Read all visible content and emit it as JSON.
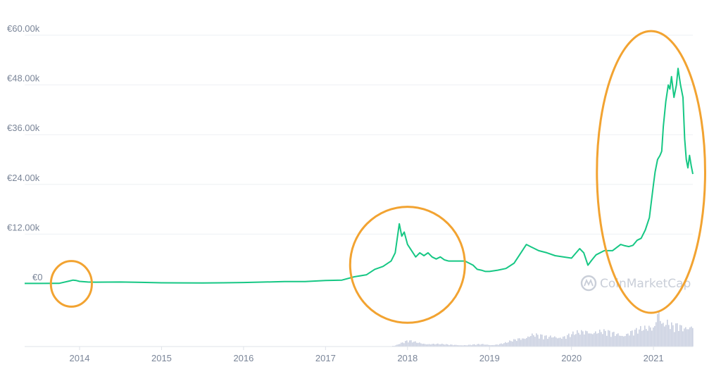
{
  "watermark": "CoinMarketCap",
  "chart_data": {
    "type": "line",
    "title": "",
    "xlabel": "",
    "ylabel": "",
    "y_tick_labels": [
      "€0",
      "€12.00k",
      "€24.00k",
      "€36.00k",
      "€48.00k",
      "€60.00k"
    ],
    "y_tick_values": [
      0,
      12000,
      24000,
      36000,
      48000,
      60000
    ],
    "ylim": [
      0,
      60000
    ],
    "x_tick_labels": [
      "2014",
      "2015",
      "2016",
      "2017",
      "2018",
      "2019",
      "2020",
      "2021"
    ],
    "x_tick_values": [
      2014.0,
      2015.0,
      2016.0,
      2017.0,
      2018.0,
      2019.0,
      2020.0,
      2021.0
    ],
    "xlim": [
      2013.33,
      2021.48
    ],
    "grid": true,
    "line_color": "#16c784",
    "volume_color": "#c9cfe0",
    "annotation_color": "#f2a331",
    "annotations": [
      {
        "shape": "circle",
        "x": 2013.9,
        "y": 0,
        "rx_years": 0.25,
        "ry_value": 5500
      },
      {
        "shape": "circle",
        "x": 2018.0,
        "y": 4600,
        "rx_years": 0.7,
        "ry_value": 14000
      },
      {
        "shape": "ellipse",
        "x": 2020.97,
        "y": 27000,
        "rx_years": 0.66,
        "ry_value": 34000
      }
    ],
    "series": [
      {
        "x": [
          2013.33,
          2013.5,
          2013.75,
          2013.88,
          2013.92,
          2013.96,
          2014.0,
          2014.1,
          2014.2,
          2014.5,
          2014.75,
          2015.0,
          2015.5,
          2015.75,
          2016.0,
          2016.5,
          2016.75,
          2017.0,
          2017.2,
          2017.35,
          2017.5,
          2017.6,
          2017.7,
          2017.8,
          2017.85,
          2017.9,
          2017.93,
          2017.96,
          2018.0,
          2018.05,
          2018.1,
          2018.15,
          2018.2,
          2018.25,
          2018.3,
          2018.35,
          2018.4,
          2018.45,
          2018.5,
          2018.6,
          2018.7,
          2018.8,
          2018.85,
          2018.9,
          2018.95,
          2019.0,
          2019.1,
          2019.2,
          2019.3,
          2019.4,
          2019.45,
          2019.5,
          2019.55,
          2019.6,
          2019.7,
          2019.8,
          2019.9,
          2020.0,
          2020.1,
          2020.15,
          2020.2,
          2020.25,
          2020.3,
          2020.4,
          2020.5,
          2020.6,
          2020.65,
          2020.7,
          2020.75,
          2020.8,
          2020.85,
          2020.9,
          2020.95,
          2021.0,
          2021.02,
          2021.05,
          2021.08,
          2021.1,
          2021.12,
          2021.15,
          2021.18,
          2021.2,
          2021.22,
          2021.25,
          2021.28,
          2021.3,
          2021.33,
          2021.36,
          2021.38,
          2021.4,
          2021.42,
          2021.44,
          2021.46,
          2021.48
        ],
        "values": [
          100,
          100,
          120,
          700,
          900,
          800,
          600,
          450,
          400,
          450,
          350,
          250,
          200,
          250,
          330,
          550,
          550,
          800,
          900,
          1700,
          2200,
          3500,
          4200,
          5500,
          7500,
          14500,
          11500,
          12500,
          9500,
          8000,
          6500,
          7500,
          6800,
          7500,
          6500,
          6000,
          6500,
          5800,
          5500,
          5500,
          5500,
          4500,
          3500,
          3300,
          3000,
          3000,
          3300,
          3700,
          5000,
          8000,
          9500,
          9000,
          8500,
          8000,
          7500,
          6800,
          6500,
          6200,
          8500,
          7500,
          4500,
          5800,
          7000,
          8000,
          8000,
          9500,
          9200,
          9000,
          9300,
          10500,
          11000,
          13000,
          16000,
          24000,
          27000,
          30000,
          31000,
          32000,
          38000,
          44000,
          48000,
          47000,
          50000,
          45000,
          48000,
          52000,
          48000,
          45000,
          35000,
          30000,
          28000,
          31000,
          28500,
          26500
        ]
      }
    ],
    "volume": {
      "x": [
        2013.33,
        2017.8,
        2017.9,
        2018.0,
        2018.1,
        2018.2,
        2018.3,
        2018.4,
        2018.5,
        2018.6,
        2018.7,
        2018.8,
        2018.9,
        2019.0,
        2019.1,
        2019.2,
        2019.3,
        2019.4,
        2019.5,
        2019.6,
        2019.7,
        2019.8,
        2019.9,
        2020.0,
        2020.1,
        2020.2,
        2020.3,
        2020.4,
        2020.5,
        2020.6,
        2020.7,
        2020.8,
        2020.9,
        2021.0,
        2021.05,
        2021.1,
        2021.15,
        2021.2,
        2021.25,
        2021.3,
        2021.35,
        2021.4,
        2021.45,
        2021.48
      ],
      "values": [
        0,
        0,
        0.07,
        0.12,
        0.09,
        0.07,
        0.06,
        0.05,
        0.04,
        0.04,
        0.03,
        0.04,
        0.05,
        0.04,
        0.05,
        0.08,
        0.14,
        0.22,
        0.27,
        0.22,
        0.2,
        0.26,
        0.22,
        0.25,
        0.3,
        0.4,
        0.33,
        0.3,
        0.28,
        0.3,
        0.32,
        0.33,
        0.38,
        0.5,
        1.0,
        0.48,
        0.5,
        0.42,
        0.4,
        0.46,
        0.42,
        0.5,
        0.56,
        0.5
      ]
    }
  }
}
